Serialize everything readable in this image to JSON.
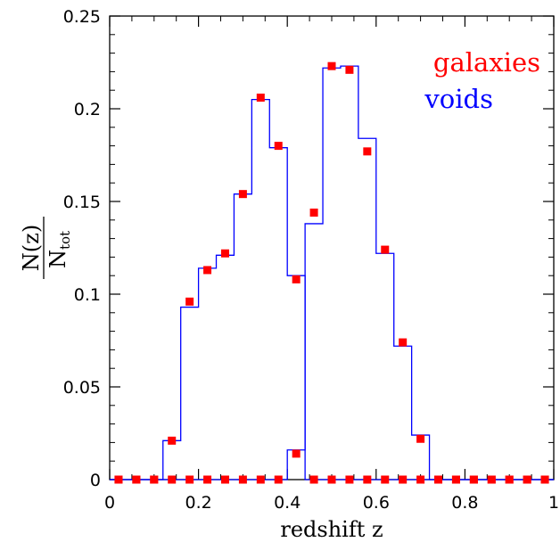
{
  "chart_data": {
    "type": "scatter",
    "xlabel": "redshift z",
    "ylabel_numerator": "N(z)",
    "ylabel_denominator_main": "N",
    "ylabel_denominator_sub": "tot",
    "xlim": [
      0,
      1
    ],
    "ylim": [
      0,
      0.25
    ],
    "xticks": [
      0,
      0.2,
      0.4,
      0.6,
      0.8,
      1
    ],
    "xtick_labels": [
      "0",
      "0.2",
      "0.4",
      "0.6",
      "0.8",
      "1"
    ],
    "yticks": [
      0,
      0.05,
      0.1,
      0.15,
      0.2,
      0.25
    ],
    "ytick_labels": [
      "0",
      "0.05",
      "0.1",
      "0.15",
      "0.2",
      "0.25"
    ],
    "grid": false,
    "legend_placement": "top-right",
    "series": [
      {
        "name": "galaxies",
        "style": "points",
        "color": "#ff0000",
        "x": [
          0.02,
          0.06,
          0.1,
          0.14,
          0.18,
          0.22,
          0.26,
          0.3,
          0.34,
          0.38,
          0.42,
          0.46,
          0.5,
          0.54,
          0.58,
          0.62,
          0.66,
          0.7,
          0.74,
          0.78,
          0.82,
          0.86,
          0.9,
          0.94,
          0.98
        ],
        "y": [
          0,
          0,
          0,
          0.021,
          0.096,
          0.113,
          0.122,
          0.154,
          0.206,
          0.18,
          0.108,
          0.144,
          0.223,
          0.221,
          0.177,
          0.124,
          0.074,
          0.022,
          0,
          0,
          0,
          0,
          0,
          0,
          0
        ]
      },
      {
        "name": "galaxies",
        "style": "points",
        "color": "#ff0000",
        "x": [
          0.02,
          0.06,
          0.1,
          0.14,
          0.18,
          0.22,
          0.26,
          0.3,
          0.34,
          0.38,
          0.42,
          0.46,
          0.5,
          0.54,
          0.58,
          0.62,
          0.66,
          0.7,
          0.74,
          0.78,
          0.82,
          0.86,
          0.9,
          0.94,
          0.98
        ],
        "y": [
          0,
          0,
          0,
          0,
          0,
          0,
          0,
          0,
          0,
          0,
          0.014,
          0,
          0,
          0,
          0,
          0,
          0,
          0,
          0,
          0,
          0,
          0,
          0,
          0,
          0
        ]
      },
      {
        "name": "voids",
        "style": "step",
        "color": "#0000ff",
        "bin_edges": [
          0,
          0.04,
          0.08,
          0.12,
          0.16,
          0.2,
          0.24,
          0.28,
          0.32,
          0.36,
          0.4,
          0.44,
          0.48,
          0.52,
          0.56,
          0.6,
          0.64,
          0.68,
          0.72,
          0.76,
          0.8,
          0.84,
          0.88,
          0.92,
          0.96,
          1.0
        ],
        "values": [
          0,
          0,
          0,
          0.021,
          0.093,
          0.114,
          0.121,
          0.154,
          0.205,
          0.179,
          0.11,
          0,
          0,
          0,
          0,
          0,
          0,
          0,
          0,
          0,
          0,
          0,
          0,
          0,
          0
        ]
      },
      {
        "name": "voids",
        "style": "step",
        "color": "#0000ff",
        "bin_edges": [
          0,
          0.04,
          0.08,
          0.12,
          0.16,
          0.2,
          0.24,
          0.28,
          0.32,
          0.36,
          0.4,
          0.44,
          0.48,
          0.52,
          0.56,
          0.6,
          0.64,
          0.68,
          0.72,
          0.76,
          0.8,
          0.84,
          0.88,
          0.92,
          0.96,
          1.0
        ],
        "values": [
          0,
          0,
          0,
          0,
          0,
          0,
          0,
          0,
          0,
          0,
          0.016,
          0.138,
          0.222,
          0.223,
          0.184,
          0.122,
          0.072,
          0.024,
          0,
          0,
          0,
          0,
          0,
          0,
          0
        ]
      }
    ],
    "legend": [
      {
        "label": "galaxies",
        "color": "#ff0000"
      },
      {
        "label": "voids",
        "color": "#0000ff"
      }
    ]
  }
}
